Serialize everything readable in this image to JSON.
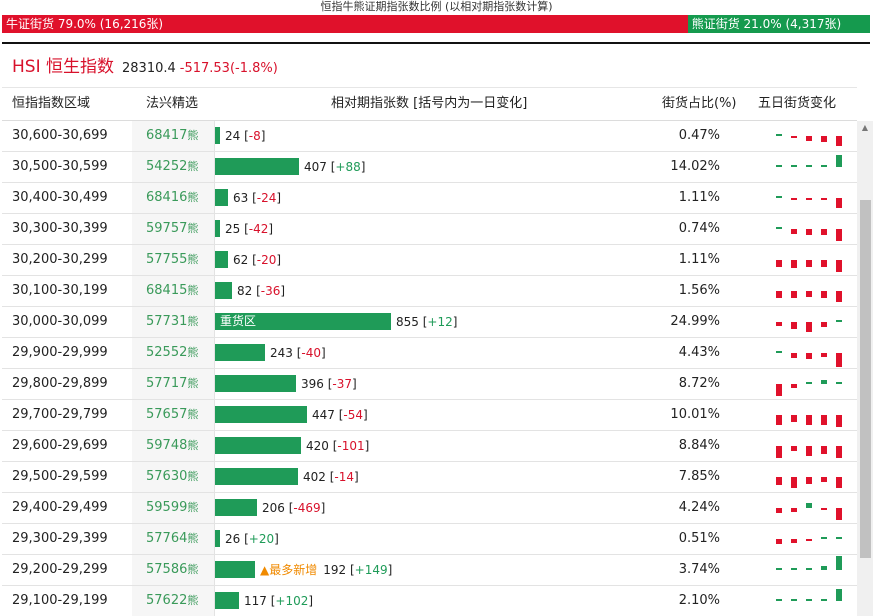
{
  "top_title": "恒指牛熊证期指张数比例 (以相对期指张数计算)",
  "ratio": {
    "bull_label": "牛证街货 79.0% (16,216张)",
    "bear_label": "熊证街货 21.0% (4,317张)",
    "bull_fraction": 0.79,
    "bear_fraction": 0.21,
    "bull_color": "#e0112b",
    "bear_color": "#159a4e"
  },
  "hsi": {
    "name": "HSI 恒生指数",
    "value": "28310.4",
    "change": "-517.53(-1.8%)"
  },
  "columns": {
    "range": "恒指指数区域",
    "warrant": "法兴精选",
    "contracts": "相对期指张数 [括号内为一日变化]",
    "share": "街货占比(%)",
    "five_day": "五日街货变化"
  },
  "warrant_suffix": "熊",
  "hot_tag": "▲最多新增",
  "rows": [
    {
      "range": "30,600-30,699",
      "code": "68417",
      "count": 24,
      "change": "-8",
      "share": "0.47%",
      "bar_pct": 0.017,
      "five_day": [
        1,
        -2,
        -4,
        -5,
        -8
      ]
    },
    {
      "range": "30,500-30,599",
      "code": "54252",
      "count": 407,
      "change": "+88",
      "share": "14.02%",
      "bar_pct": 0.476,
      "five_day": [
        2,
        0,
        1,
        2,
        10
      ]
    },
    {
      "range": "30,400-30,499",
      "code": "68416",
      "count": 63,
      "change": "-24",
      "share": "1.11%",
      "bar_pct": 0.074,
      "five_day": [
        2,
        -1,
        -2,
        -2,
        -8
      ]
    },
    {
      "range": "30,300-30,399",
      "code": "59757",
      "count": 25,
      "change": "-42",
      "share": "0.74%",
      "bar_pct": 0.029,
      "five_day": [
        2,
        -4,
        -5,
        -5,
        -10
      ]
    },
    {
      "range": "30,200-30,299",
      "code": "57755",
      "count": 62,
      "change": "-20",
      "share": "1.11%",
      "bar_pct": 0.073,
      "five_day": [
        -6,
        -7,
        -6,
        -6,
        -10
      ]
    },
    {
      "range": "30,100-30,199",
      "code": "68415",
      "count": 82,
      "change": "-36",
      "share": "1.56%",
      "bar_pct": 0.096,
      "five_day": [
        -6,
        -6,
        -5,
        -6,
        -9
      ]
    },
    {
      "range": "30,000-30,099",
      "code": "57731",
      "count": 855,
      "change": "+12",
      "share": "24.99%",
      "bar_pct": 1.0,
      "label": "重货区",
      "five_day": [
        -3,
        -6,
        -8,
        -4,
        1
      ]
    },
    {
      "range": "29,900-29,999",
      "code": "52552",
      "count": 243,
      "change": "-40",
      "share": "4.43%",
      "bar_pct": 0.284,
      "five_day": [
        2,
        -4,
        -5,
        -3,
        -12
      ]
    },
    {
      "range": "29,800-29,899",
      "code": "57717",
      "count": 396,
      "change": "-37",
      "share": "8.72%",
      "bar_pct": 0.463,
      "five_day": [
        -10,
        -3,
        2,
        3,
        1
      ]
    },
    {
      "range": "29,700-29,799",
      "code": "57657",
      "count": 447,
      "change": "-54",
      "share": "10.01%",
      "bar_pct": 0.523,
      "five_day": [
        -8,
        -6,
        -8,
        -8,
        -10
      ]
    },
    {
      "range": "29,600-29,699",
      "code": "59748",
      "count": 420,
      "change": "-101",
      "share": "8.84%",
      "bar_pct": 0.491,
      "five_day": [
        -10,
        -4,
        -8,
        -7,
        -10
      ]
    },
    {
      "range": "29,500-29,599",
      "code": "57630",
      "count": 402,
      "change": "-14",
      "share": "7.85%",
      "bar_pct": 0.47,
      "five_day": [
        -7,
        -9,
        -6,
        -4,
        -9
      ]
    },
    {
      "range": "29,400-29,499",
      "code": "59599",
      "count": 206,
      "change": "-469",
      "share": "4.24%",
      "bar_pct": 0.241,
      "five_day": [
        -4,
        -3,
        4,
        -2,
        -10
      ]
    },
    {
      "range": "29,300-29,399",
      "code": "57764",
      "count": 26,
      "change": "+20",
      "share": "0.51%",
      "bar_pct": 0.03,
      "five_day": [
        -4,
        -3,
        -2,
        1,
        1
      ]
    },
    {
      "range": "29,200-29,299",
      "code": "57586",
      "count": 192,
      "change": "+149",
      "share": "3.74%",
      "bar_pct": 0.225,
      "hot": true,
      "five_day": [
        0,
        0,
        0,
        3,
        12
      ]
    },
    {
      "range": "29,100-29,199",
      "code": "57622",
      "count": 117,
      "change": "+102",
      "share": "2.10%",
      "bar_pct": 0.137,
      "five_day": [
        0,
        0,
        1,
        2,
        10
      ]
    }
  ]
}
